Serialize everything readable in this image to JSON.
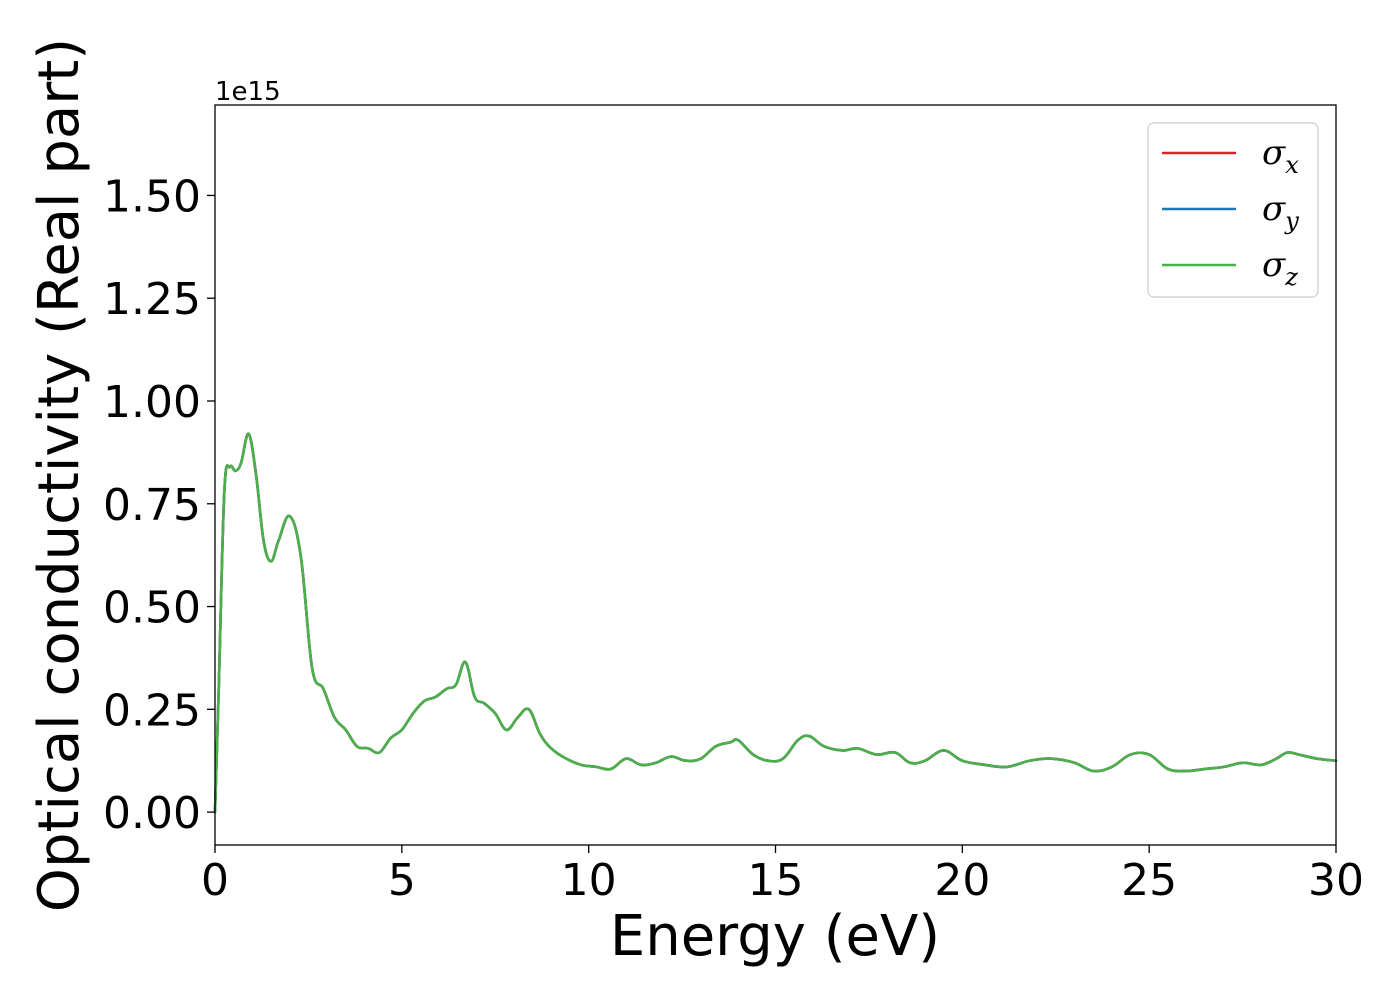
{
  "chart_data": {
    "type": "line",
    "xlabel": "Energy (eV)",
    "ylabel": "Optical conductivity (Real part)",
    "y_offset_text": "1e15",
    "y_scale_factor": 1000000000000000.0,
    "xlim": [
      0,
      30
    ],
    "ylim": [
      -0.08,
      1.72
    ],
    "xticks": [
      0,
      5,
      10,
      15,
      20,
      25,
      30
    ],
    "xtick_labels": [
      "0",
      "5",
      "10",
      "15",
      "20",
      "25",
      "30"
    ],
    "yticks": [
      0.0,
      0.25,
      0.5,
      0.75,
      1.0,
      1.25,
      1.5
    ],
    "ytick_labels": [
      "0.00",
      "0.25",
      "0.50",
      "0.75",
      "1.00",
      "1.25",
      "1.50"
    ],
    "grid": false,
    "legend_position": "top-right",
    "legend": [
      {
        "main": "σ",
        "sub": "x",
        "color": "#d62728"
      },
      {
        "main": "σ",
        "sub": "y",
        "color": "#1f77b4"
      },
      {
        "main": "σ",
        "sub": "z",
        "color": "#4daf4a"
      }
    ],
    "x": [
      0,
      0.1,
      0.25,
      0.4,
      0.55,
      0.7,
      0.9,
      1.1,
      1.3,
      1.5,
      1.7,
      2.0,
      2.3,
      2.6,
      2.9,
      3.2,
      3.5,
      3.8,
      4.1,
      4.4,
      4.7,
      5.0,
      5.3,
      5.6,
      5.9,
      6.2,
      6.45,
      6.7,
      6.95,
      7.2,
      7.5,
      7.8,
      8.1,
      8.4,
      8.7,
      9.0,
      9.4,
      9.8,
      10.2,
      10.6,
      11.0,
      11.4,
      11.8,
      12.2,
      12.6,
      13.0,
      13.4,
      13.8,
      14.0,
      14.4,
      14.8,
      15.2,
      15.6,
      15.9,
      16.3,
      16.8,
      17.2,
      17.7,
      18.2,
      18.6,
      19.0,
      19.5,
      20.0,
      20.6,
      21.2,
      21.8,
      22.4,
      23.0,
      23.5,
      24.0,
      24.5,
      25.0,
      25.5,
      26.0,
      26.5,
      27.0,
      27.5,
      28.0,
      28.4,
      28.7,
      29.0,
      29.5,
      30.0
    ],
    "series": [
      {
        "name": "σx",
        "color": "#d62728",
        "values": [
          0.0,
          0.3,
          0.78,
          0.84,
          0.83,
          0.85,
          0.92,
          0.82,
          0.66,
          0.61,
          0.66,
          0.72,
          0.62,
          0.35,
          0.3,
          0.23,
          0.2,
          0.16,
          0.155,
          0.145,
          0.18,
          0.2,
          0.24,
          0.27,
          0.28,
          0.3,
          0.31,
          0.365,
          0.28,
          0.265,
          0.24,
          0.2,
          0.23,
          0.25,
          0.19,
          0.155,
          0.13,
          0.115,
          0.11,
          0.105,
          0.13,
          0.115,
          0.12,
          0.135,
          0.125,
          0.13,
          0.16,
          0.17,
          0.175,
          0.14,
          0.125,
          0.13,
          0.175,
          0.185,
          0.16,
          0.15,
          0.155,
          0.14,
          0.145,
          0.12,
          0.125,
          0.15,
          0.125,
          0.115,
          0.11,
          0.125,
          0.13,
          0.12,
          0.1,
          0.11,
          0.14,
          0.14,
          0.105,
          0.1,
          0.105,
          0.11,
          0.12,
          0.115,
          0.13,
          0.145,
          0.14,
          0.13,
          0.125
        ]
      },
      {
        "name": "σy",
        "color": "#1f77b4",
        "values": [
          0.0,
          0.3,
          0.78,
          0.84,
          0.83,
          0.85,
          0.92,
          0.82,
          0.66,
          0.61,
          0.66,
          0.72,
          0.62,
          0.35,
          0.3,
          0.23,
          0.2,
          0.16,
          0.155,
          0.145,
          0.18,
          0.2,
          0.24,
          0.27,
          0.28,
          0.3,
          0.31,
          0.365,
          0.28,
          0.265,
          0.24,
          0.2,
          0.23,
          0.25,
          0.19,
          0.155,
          0.13,
          0.115,
          0.11,
          0.105,
          0.13,
          0.115,
          0.12,
          0.135,
          0.125,
          0.13,
          0.16,
          0.17,
          0.175,
          0.14,
          0.125,
          0.13,
          0.175,
          0.185,
          0.16,
          0.15,
          0.155,
          0.14,
          0.145,
          0.12,
          0.125,
          0.15,
          0.125,
          0.115,
          0.11,
          0.125,
          0.13,
          0.12,
          0.1,
          0.11,
          0.14,
          0.14,
          0.105,
          0.1,
          0.105,
          0.11,
          0.12,
          0.115,
          0.13,
          0.145,
          0.14,
          0.13,
          0.125
        ]
      },
      {
        "name": "σz",
        "color": "#4daf4a",
        "values": [
          0.0,
          0.3,
          0.78,
          0.84,
          0.83,
          0.85,
          0.92,
          0.82,
          0.66,
          0.61,
          0.66,
          0.72,
          0.62,
          0.35,
          0.3,
          0.23,
          0.2,
          0.16,
          0.155,
          0.145,
          0.18,
          0.2,
          0.24,
          0.27,
          0.28,
          0.3,
          0.31,
          0.365,
          0.28,
          0.265,
          0.24,
          0.2,
          0.23,
          0.25,
          0.19,
          0.155,
          0.13,
          0.115,
          0.11,
          0.105,
          0.13,
          0.115,
          0.12,
          0.135,
          0.125,
          0.13,
          0.16,
          0.17,
          0.175,
          0.14,
          0.125,
          0.13,
          0.175,
          0.185,
          0.16,
          0.15,
          0.155,
          0.14,
          0.145,
          0.12,
          0.125,
          0.15,
          0.125,
          0.115,
          0.11,
          0.125,
          0.13,
          0.12,
          0.1,
          0.11,
          0.14,
          0.14,
          0.105,
          0.1,
          0.105,
          0.11,
          0.12,
          0.115,
          0.13,
          0.145,
          0.14,
          0.13,
          0.125
        ]
      }
    ]
  }
}
